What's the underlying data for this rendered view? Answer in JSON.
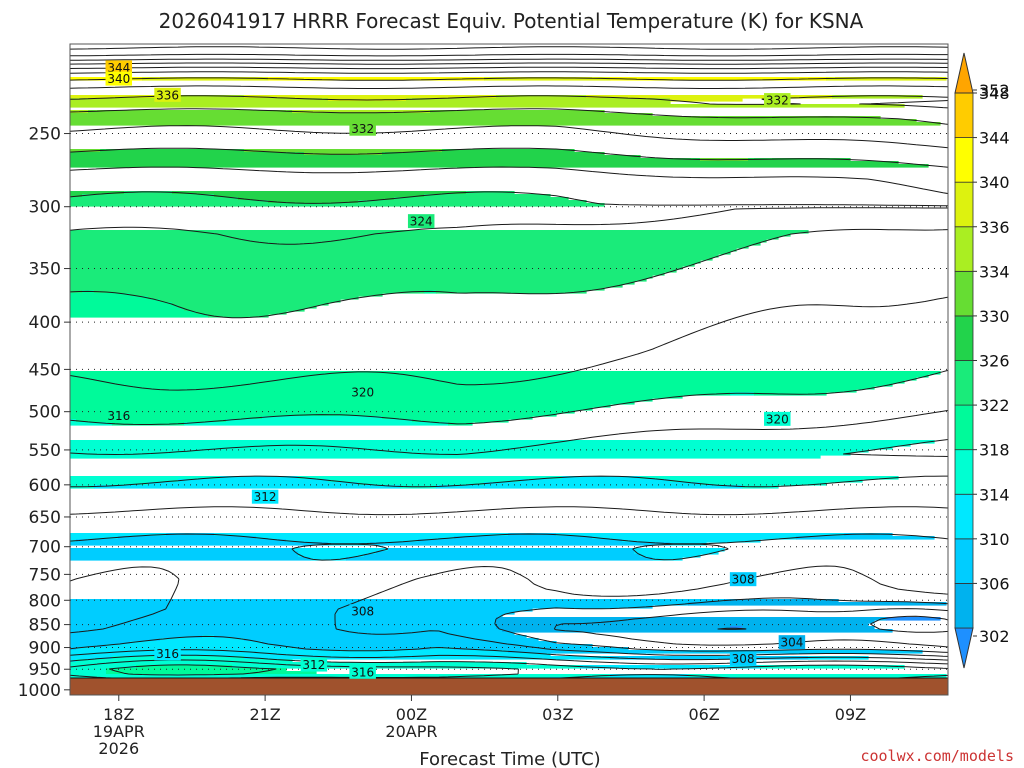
{
  "chart_data": {
    "type": "heatmap",
    "title": "2026041917 HRRR Forecast Equiv. Potential Temperature (K) for KSNA",
    "xlabel": "Forecast Time (UTC)",
    "ylabel": "",
    "credit": "coolwx.com/models",
    "x_ticks": [
      {
        "t": 0,
        "label": "18Z",
        "sub": [
          "19APR",
          "2026"
        ]
      },
      {
        "t": 3,
        "label": "21Z",
        "sub": []
      },
      {
        "t": 6,
        "label": "00Z",
        "sub": [
          "20APR"
        ]
      },
      {
        "t": 9,
        "label": "03Z",
        "sub": []
      },
      {
        "t": 12,
        "label": "06Z",
        "sub": []
      },
      {
        "t": 15,
        "label": "09Z",
        "sub": []
      }
    ],
    "xlim": [
      -1,
      17
    ],
    "y_ticks": [
      250,
      300,
      350,
      400,
      450,
      500,
      550,
      600,
      650,
      700,
      750,
      800,
      850,
      900,
      950,
      1000
    ],
    "y_axis": "pressure (hPa), log scale, inverted",
    "ylim": [
      200,
      1013
    ],
    "colorbar": {
      "levels": [
        302,
        306,
        310,
        314,
        318,
        322,
        326,
        330,
        334,
        336,
        340,
        344,
        348,
        352
      ],
      "colors": [
        "#1e90ff",
        "#00b2ee",
        "#00cdff",
        "#00e8ff",
        "#00ffd2",
        "#00fa9a",
        "#1aeb7a",
        "#22d34b",
        "#66dd33",
        "#aaee22",
        "#ddf20f",
        "#ffff00",
        "#ffcc00",
        "#ffa500"
      ],
      "range": [
        298,
        356
      ]
    },
    "surface_color": "#a0522d",
    "contour_labels": [
      {
        "t": 0.0,
        "p": 212,
        "text": "344"
      },
      {
        "t": 0.0,
        "p": 218,
        "text": "340"
      },
      {
        "t": 1.0,
        "p": 227,
        "text": "336"
      },
      {
        "t": 5.0,
        "p": 247,
        "text": "332"
      },
      {
        "t": 13.5,
        "p": 230,
        "text": "332"
      },
      {
        "t": 6.2,
        "p": 311,
        "text": "324"
      },
      {
        "t": 5.0,
        "p": 476,
        "text": "320"
      },
      {
        "t": 0.0,
        "p": 505,
        "text": "316"
      },
      {
        "t": 13.5,
        "p": 509,
        "text": "320"
      },
      {
        "t": 3.0,
        "p": 618,
        "text": "312"
      },
      {
        "t": 12.8,
        "p": 759,
        "text": "308"
      },
      {
        "t": 5.0,
        "p": 822,
        "text": "308"
      },
      {
        "t": 13.8,
        "p": 888,
        "text": "304"
      },
      {
        "t": 12.8,
        "p": 925,
        "text": "308"
      },
      {
        "t": 1.0,
        "p": 913,
        "text": "316"
      },
      {
        "t": 4.0,
        "p": 939,
        "text": "312"
      },
      {
        "t": 5.0,
        "p": 956,
        "text": "316"
      }
    ]
  }
}
